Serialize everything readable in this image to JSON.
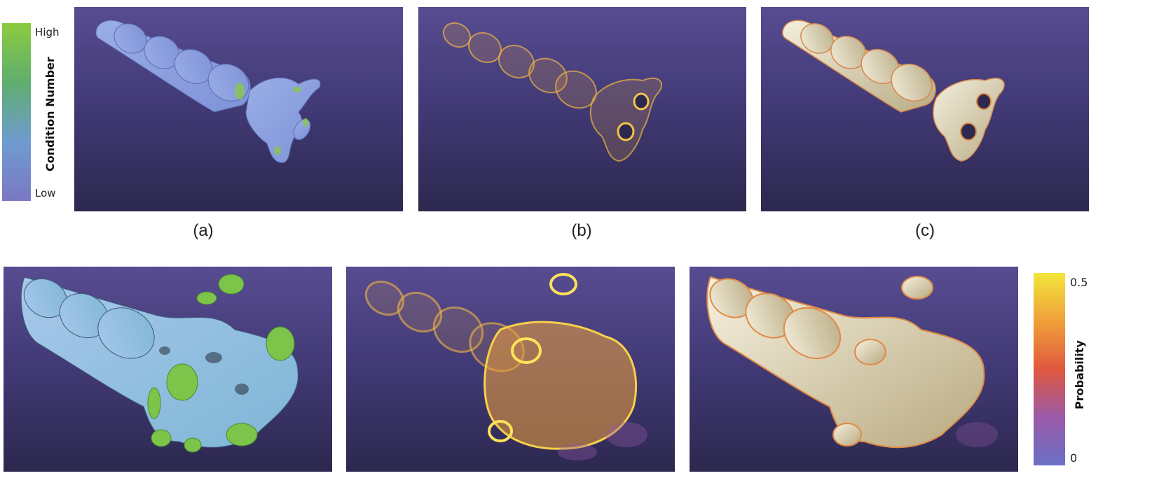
{
  "condition_colorbar": {
    "title": "Condition Number",
    "high_label": "High",
    "low_label": "Low",
    "colors": [
      "#8ccb3f",
      "#5fae6e",
      "#6f9bd0",
      "#7a78c4"
    ]
  },
  "probability_colorbar": {
    "title": "Probability",
    "max_label": "0.5",
    "min_label": "0",
    "colors": [
      "#f2e63a",
      "#f0a03a",
      "#e0583e",
      "#9a5aa8",
      "#6a70c6"
    ]
  },
  "captions": [
    "(a)",
    "(b)",
    "(c)"
  ],
  "panels": [
    {
      "row": "top",
      "style": "condition-number-surface"
    },
    {
      "row": "top",
      "style": "probability-volume"
    },
    {
      "row": "top",
      "style": "probability-surface-overlay"
    },
    {
      "row": "bottom",
      "style": "condition-number-surface"
    },
    {
      "row": "bottom",
      "style": "probability-volume"
    },
    {
      "row": "bottom",
      "style": "probability-surface-overlay"
    }
  ]
}
